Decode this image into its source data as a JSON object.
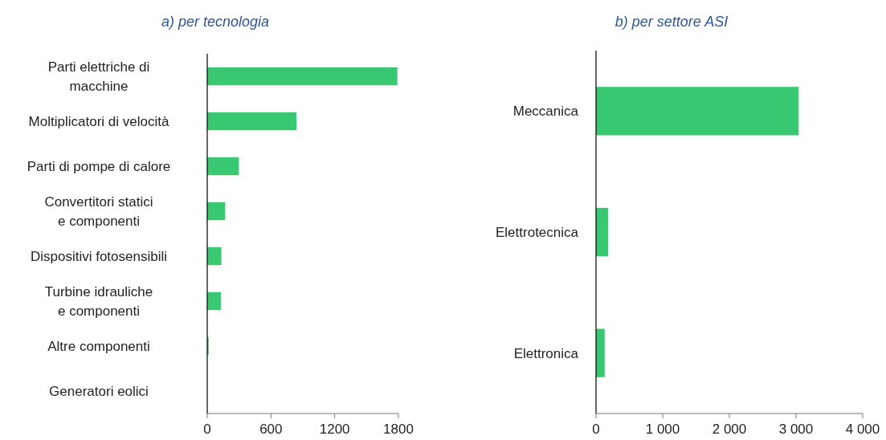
{
  "chart_data": [
    {
      "type": "bar",
      "orientation": "horizontal",
      "title": "a) per tecnologia",
      "categories": [
        "Parti elettriche di macchine",
        "Moltiplicatori di velocità",
        "Parti di pompe di calore",
        "Convertitori statici e componenti",
        "Dispositivi fotosensibili",
        "Turbine idrauliche e componenti",
        "Altre componenti",
        "Generatori eolici"
      ],
      "values": [
        1790,
        840,
        297,
        169,
        133,
        128,
        13,
        0
      ],
      "color": "#38c872",
      "xlim": [
        0,
        1800
      ],
      "xticks": [
        0,
        600,
        1200,
        1800
      ],
      "grid": false,
      "legend": false
    },
    {
      "type": "bar",
      "orientation": "horizontal",
      "title": "b) per settore ASI",
      "categories": [
        "Meccanica",
        "Elettrotecnica",
        "Elettronica"
      ],
      "values": [
        3040,
        180,
        130
      ],
      "color": "#38c872",
      "xlim": [
        0,
        4000
      ],
      "xticks": [
        0,
        {
          "value": 1000,
          "label": "1 000"
        },
        {
          "value": 2000,
          "label": "2 000"
        },
        {
          "value": 3000,
          "label": "3 000"
        },
        {
          "value": 4000,
          "label": "4 000"
        }
      ],
      "grid": false,
      "legend": false
    }
  ]
}
